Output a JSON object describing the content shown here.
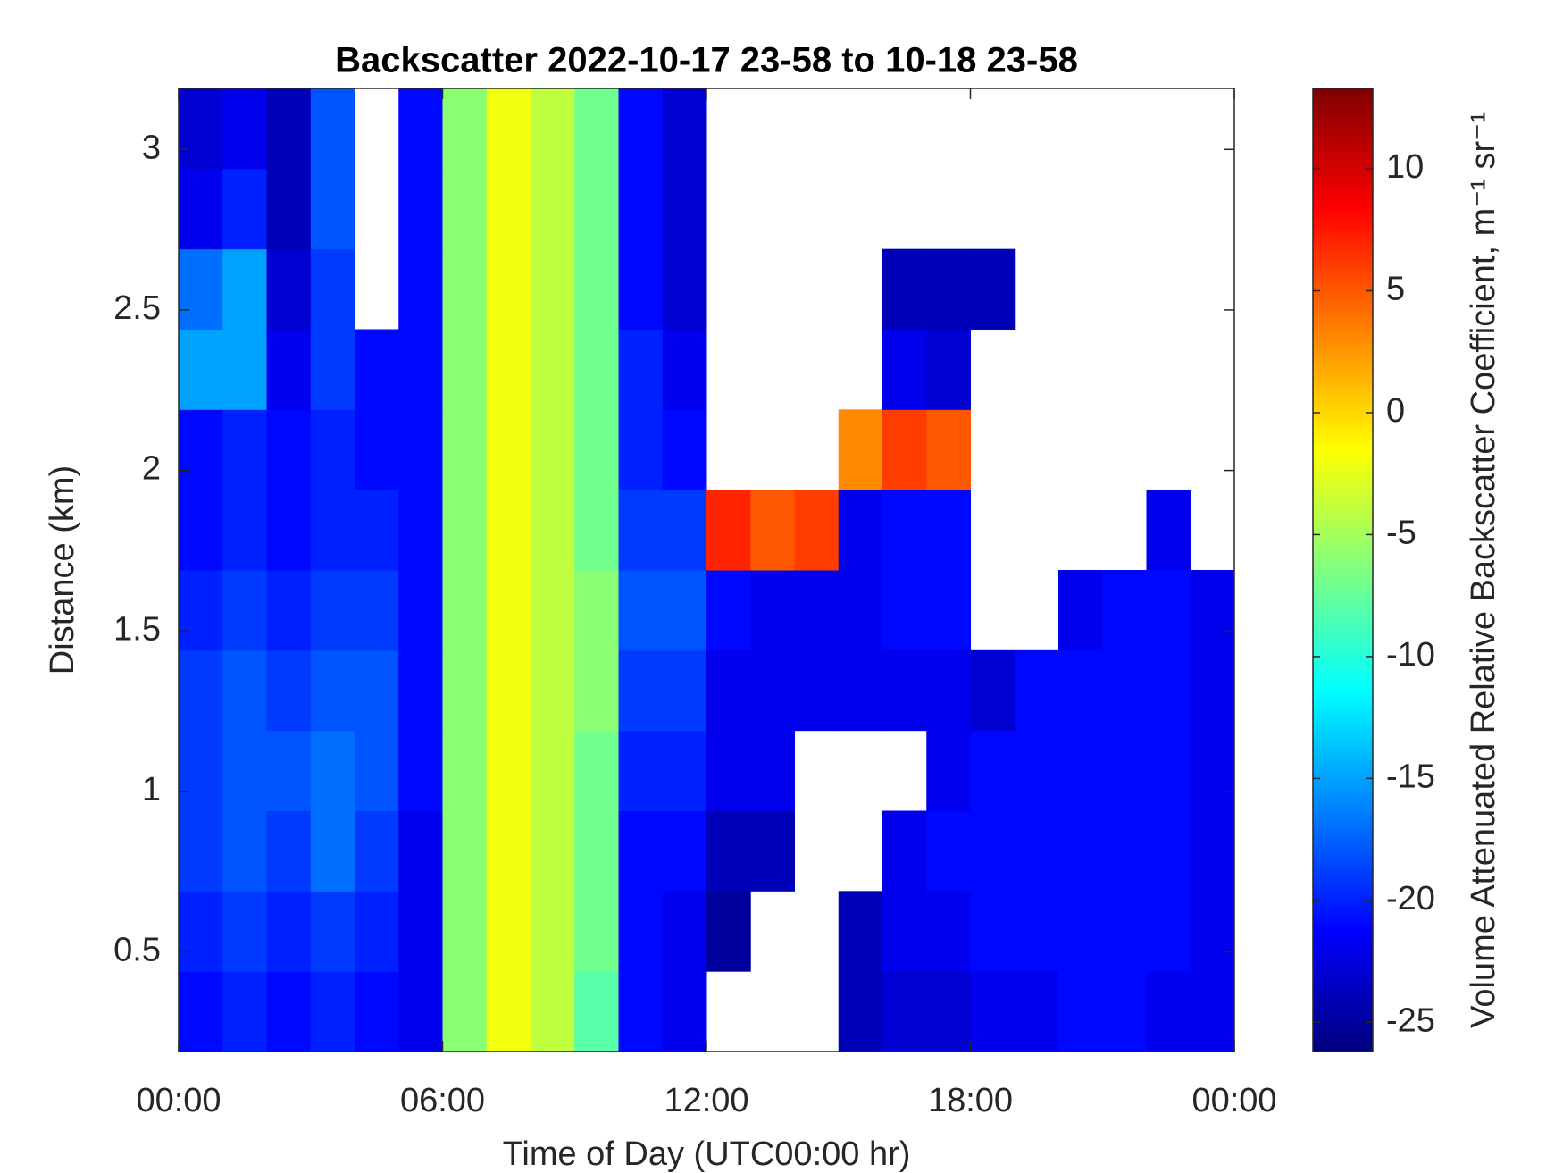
{
  "chart_data": {
    "type": "heatmap",
    "title": "Backscatter 2022-10-17 23-58 to 10-18 23-58",
    "x_label": "Time of Day (UTC00:00 hr)",
    "y_label": "Distance (km)",
    "colorbar_label": "Volume Attenuated Relative Backscatter Coefficient, m⁻¹ sr⁻¹",
    "colormap": "jet",
    "x_bins": [
      0,
      1,
      2,
      3,
      4,
      5,
      6,
      7,
      8,
      9,
      10,
      11,
      12,
      13,
      14,
      15,
      16,
      17,
      18,
      19,
      20,
      21,
      22,
      23,
      24
    ],
    "y_bins": [
      0.19,
      0.44,
      0.69,
      0.94,
      1.19,
      1.44,
      1.69,
      1.94,
      2.19,
      2.44,
      2.69,
      2.94,
      3.19
    ],
    "xlim": [
      0,
      24
    ],
    "xticks": [
      {
        "value": 0,
        "label": "00:00"
      },
      {
        "value": 6,
        "label": "06:00"
      },
      {
        "value": 12,
        "label": "12:00"
      },
      {
        "value": 18,
        "label": "18:00"
      },
      {
        "value": 24,
        "label": "00:00"
      }
    ],
    "ylim": [
      0.19,
      3.19
    ],
    "yticks": [
      0.5,
      1,
      1.5,
      2,
      2.5,
      3
    ],
    "clim": [
      -26.2,
      13.3
    ],
    "cticks": [
      -25,
      -20,
      -15,
      -10,
      -5,
      0,
      5,
      10
    ],
    "values": [
      [
        -21,
        -20,
        -21,
        -20,
        -21,
        -22,
        -6,
        -2,
        -4,
        -8,
        -21,
        -22,
        null,
        null,
        null,
        -24,
        -23,
        -23,
        -22,
        -22,
        -21,
        -21,
        -22,
        -22
      ],
      [
        -20,
        -19,
        -20,
        -19,
        -20,
        -22,
        -6,
        -2,
        -4,
        -7,
        -21,
        -22,
        -25,
        null,
        null,
        -24,
        -22,
        -22,
        -21,
        -21,
        -21,
        -21,
        -21,
        -22
      ],
      [
        -19,
        -18,
        -19,
        -17,
        -19,
        -22,
        -6,
        -2,
        -4,
        -7,
        -21,
        -21,
        -24,
        -24,
        null,
        null,
        -22,
        -21,
        -21,
        -21,
        -21,
        -21,
        -21,
        -22
      ],
      [
        -19,
        -18,
        -18,
        -17,
        -18,
        -21,
        -6,
        -2,
        -4,
        -7,
        -20,
        -20,
        -22,
        -22,
        null,
        null,
        null,
        -22,
        -21,
        -21,
        -21,
        -21,
        -21,
        -22
      ],
      [
        -19,
        -18,
        -19,
        -18,
        -18,
        -21,
        -6,
        -2,
        -4,
        -6,
        -19,
        -19,
        -22,
        -22,
        -22,
        -22,
        -22,
        -22,
        -23,
        -21,
        -21,
        -21,
        -21,
        -22
      ],
      [
        -20,
        -19,
        -20,
        -19,
        -19,
        -21,
        -6,
        -2,
        -4,
        -6,
        -18,
        -18,
        -21,
        -22,
        -22,
        -22,
        -21,
        -21,
        null,
        null,
        -22,
        -21,
        -21,
        -22
      ],
      [
        -21,
        -20,
        -21,
        -20,
        -20,
        -21,
        -6,
        -2,
        -4,
        -7,
        -19,
        -19,
        7,
        5,
        6,
        -22,
        -21,
        -21,
        null,
        null,
        null,
        null,
        -22,
        null
      ],
      [
        -21,
        -20,
        -21,
        -20,
        -21,
        -21,
        -6,
        -2,
        -4,
        -7,
        -20,
        -21,
        null,
        null,
        null,
        3,
        6,
        5,
        null,
        null,
        null,
        null,
        null,
        null
      ],
      [
        -15,
        -15,
        -22,
        -19,
        -21,
        -21,
        -6,
        -2,
        -4,
        -7,
        -20,
        -22,
        null,
        null,
        null,
        null,
        -22,
        -23,
        null,
        null,
        null,
        null,
        null,
        null
      ],
      [
        -17,
        -15,
        -23,
        -19,
        null,
        -21,
        -6,
        -2,
        -4,
        -7,
        -21,
        -23,
        null,
        null,
        null,
        null,
        -24,
        -24,
        -24,
        null,
        null,
        null,
        null,
        null
      ],
      [
        -22,
        -20,
        -24,
        -18,
        null,
        -21,
        -6,
        -2,
        -4,
        -7,
        -21,
        -23,
        null,
        null,
        null,
        null,
        null,
        null,
        null,
        null,
        null,
        null,
        null,
        null
      ],
      [
        -23,
        -22,
        -24,
        -18,
        null,
        -21,
        -6,
        -2,
        -4,
        -7,
        -21,
        -23,
        null,
        null,
        null,
        null,
        null,
        null,
        null,
        null,
        null,
        null,
        null,
        null
      ]
    ]
  }
}
